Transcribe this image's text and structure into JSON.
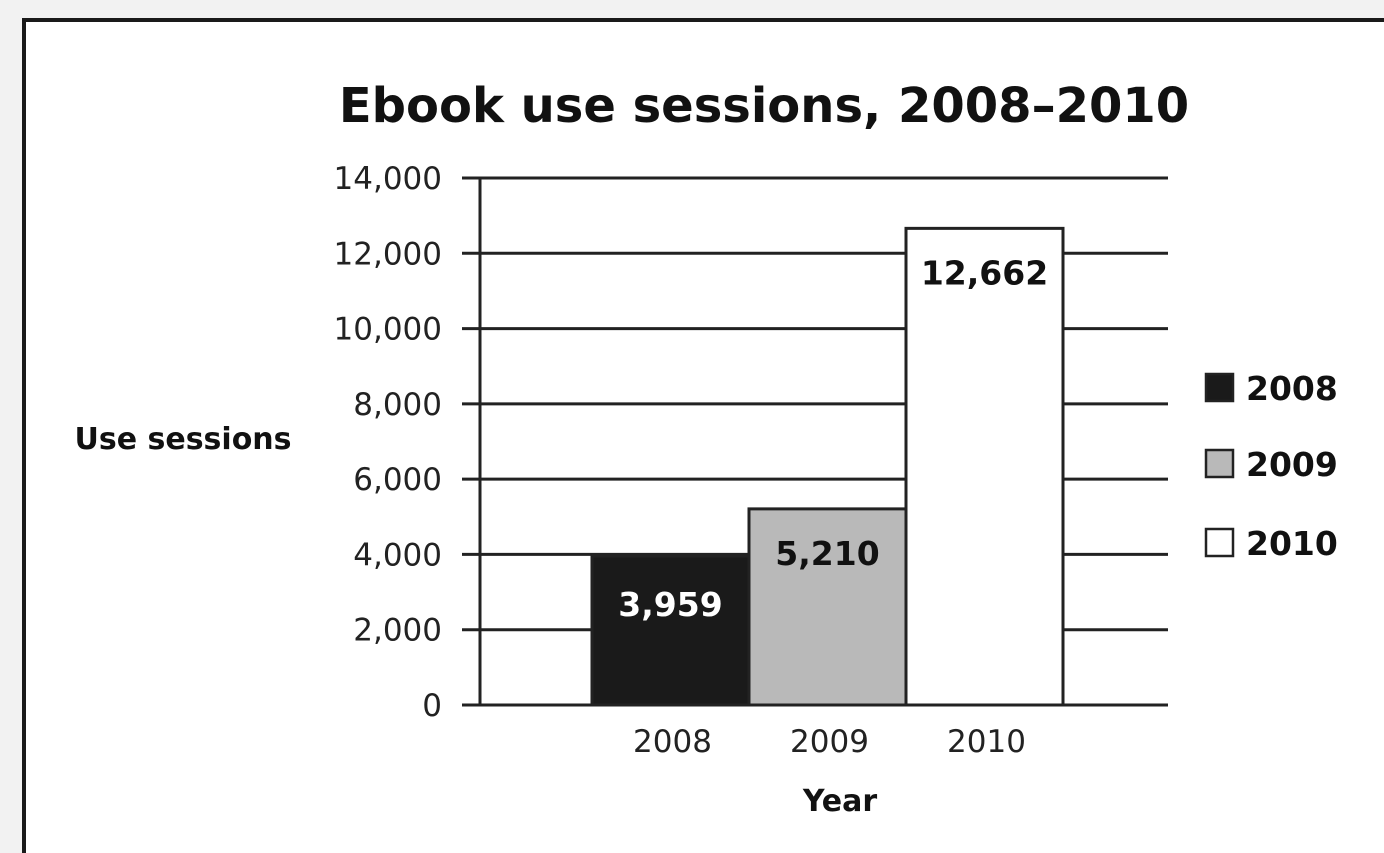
{
  "chart_data": {
    "type": "bar",
    "title": "Ebook use sessions, 2008–2010",
    "xlabel": "Year",
    "ylabel": "Use sessions",
    "categories": [
      "2008",
      "2009",
      "2010"
    ],
    "values": [
      3959,
      5210,
      12662
    ],
    "data_labels": [
      "3,959",
      "5,210",
      "12,662"
    ],
    "ylim": [
      0,
      14000
    ],
    "yticks": [
      0,
      2000,
      4000,
      6000,
      8000,
      10000,
      12000,
      14000
    ],
    "ytick_labels": [
      "0",
      "2,000",
      "4,000",
      "6,000",
      "8,000",
      "10,000",
      "12,000",
      "14,000"
    ],
    "grid": true,
    "legend": {
      "position": "right",
      "entries": [
        "2008",
        "2009",
        "2010"
      ]
    },
    "colors": [
      "#1a1a1a",
      "#b9b9b9",
      "#ffffff"
    ],
    "label_colors": [
      "#ffffff",
      "#111111",
      "#111111"
    ]
  }
}
